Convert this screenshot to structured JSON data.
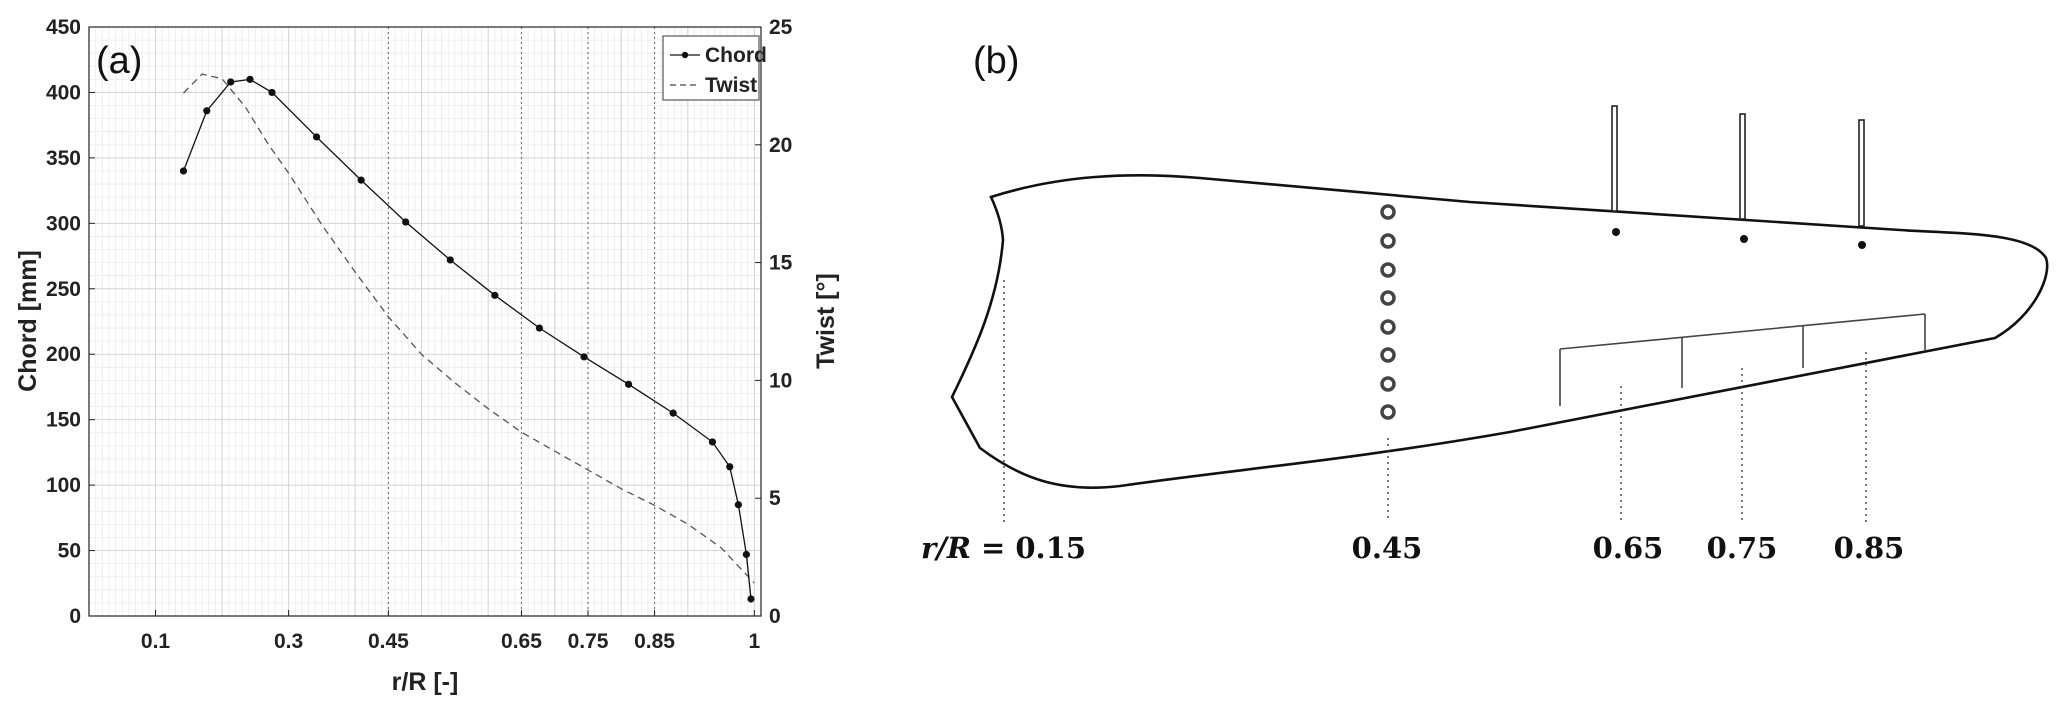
{
  "chart_data": [
    {
      "type": "line",
      "panel_label": "(a)",
      "xlabel": "r/R [-]",
      "ylabel": "Chord [mm]",
      "y2label": "Twist [°]",
      "xlim": [
        0,
        1.01
      ],
      "ylim": [
        0,
        450
      ],
      "y2lim": [
        0,
        25
      ],
      "x_ticks": [
        0.1,
        0.3,
        0.45,
        0.65,
        0.75,
        0.85,
        1
      ],
      "x_tick_labels": [
        "0.1",
        "0.3",
        "0.45",
        "0.65",
        "0.75",
        "0.85",
        "1"
      ],
      "y_ticks": [
        0,
        50,
        100,
        150,
        200,
        250,
        300,
        350,
        400,
        450
      ],
      "y2_ticks": [
        0,
        5,
        10,
        15,
        20,
        25
      ],
      "grid": true,
      "legend_position": "top-right",
      "series": [
        {
          "name": "Chord",
          "axis": "left",
          "style": "solid-with-markers",
          "x": [
            0.142,
            0.177,
            0.213,
            0.242,
            0.275,
            0.342,
            0.409,
            0.476,
            0.543,
            0.61,
            0.677,
            0.744,
            0.811,
            0.878,
            0.937,
            0.963,
            0.976,
            0.988,
            0.995
          ],
          "y": [
            340,
            386,
            408,
            410,
            400,
            366,
            333,
            301,
            272,
            245,
            220,
            198,
            177,
            155,
            133,
            114,
            85,
            47,
            13
          ]
        },
        {
          "name": "Twist",
          "axis": "right",
          "style": "dashed",
          "x": [
            0.142,
            0.17,
            0.2,
            0.235,
            0.27,
            0.3,
            0.35,
            0.4,
            0.45,
            0.5,
            0.55,
            0.6,
            0.65,
            0.7,
            0.75,
            0.8,
            0.85,
            0.9,
            0.95,
            0.98,
            1.0
          ],
          "y": [
            22.2,
            23.0,
            22.8,
            21.6,
            20.0,
            18.8,
            16.6,
            14.6,
            12.7,
            11.1,
            9.9,
            8.8,
            7.8,
            7.0,
            6.2,
            5.4,
            4.7,
            3.9,
            2.9,
            2.0,
            1.4
          ]
        }
      ]
    },
    {
      "type": "diagram",
      "panel_label": "(b)",
      "section_labels": [
        {
          "pos": 0.15,
          "math_prefix": "r/R",
          "text": "= 0.15"
        },
        {
          "pos": 0.45,
          "text": "0.45"
        },
        {
          "pos": 0.65,
          "text": "0.65"
        },
        {
          "pos": 0.75,
          "text": "0.75"
        },
        {
          "pos": 0.85,
          "text": "0.85"
        }
      ]
    }
  ]
}
